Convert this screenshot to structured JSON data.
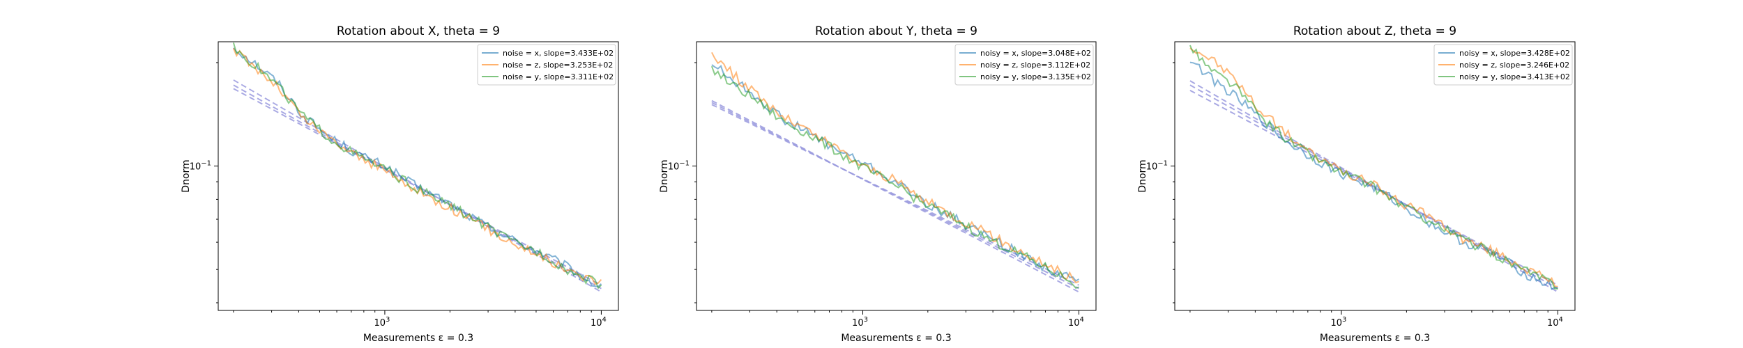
{
  "chart_data": [
    {
      "type": "line",
      "title": "Rotation about X, theta = 9",
      "xlabel": "Measurements ε = 0.3",
      "ylabel": "Dnorm",
      "xscale": "log",
      "yscale": "log",
      "xlim": [
        170,
        12000
      ],
      "ylim": [
        0.038,
        0.23
      ],
      "xticks": [
        {
          "value": 1000,
          "label": "10",
          "exp": "3"
        },
        {
          "value": 10000,
          "label": "10",
          "exp": "4"
        }
      ],
      "yticks": [
        {
          "value": 0.1,
          "label": "10",
          "exp": "−1"
        }
      ],
      "legend": "top-right",
      "grid": false,
      "series": [
        {
          "name": "noise = x, slope=3.433E+02",
          "color": "#1f77b4",
          "noise_y": [
            0.222,
            0.2,
            0.175,
            0.14,
            0.121,
            0.108,
            0.1,
            0.087,
            0.079,
            0.069,
            0.062,
            0.056,
            0.05,
            0.044
          ],
          "fit_start": 0.178,
          "fit_end": 0.043
        },
        {
          "name": "noise = z, slope=3.253E+02",
          "color": "#ff7f0e",
          "noise_y": [
            0.218,
            0.195,
            0.17,
            0.138,
            0.12,
            0.107,
            0.097,
            0.085,
            0.077,
            0.068,
            0.061,
            0.055,
            0.049,
            0.046
          ],
          "fit_start": 0.172,
          "fit_end": 0.044
        },
        {
          "name": "noise = y, slope=3.311E+02",
          "color": "#2ca02c",
          "noise_y": [
            0.223,
            0.197,
            0.172,
            0.14,
            0.12,
            0.107,
            0.098,
            0.086,
            0.078,
            0.069,
            0.061,
            0.056,
            0.049,
            0.045
          ],
          "fit_start": 0.168,
          "fit_end": 0.045
        }
      ],
      "x": [
        200,
        250,
        320,
        420,
        560,
        750,
        1000,
        1400,
        1900,
        2700,
        3700,
        5200,
        7300,
        10000
      ]
    },
    {
      "type": "line",
      "title": "Rotation about Y, theta = 9",
      "xlabel": "Measurements ε = 0.3",
      "ylabel": "Dnorm",
      "xscale": "log",
      "yscale": "log",
      "xlim": [
        170,
        12000
      ],
      "ylim": [
        0.038,
        0.23
      ],
      "xticks": [
        {
          "value": 1000,
          "label": "10",
          "exp": "3"
        },
        {
          "value": 10000,
          "label": "10",
          "exp": "4"
        }
      ],
      "yticks": [
        {
          "value": 0.1,
          "label": "10",
          "exp": "−1"
        }
      ],
      "legend": "top-right",
      "grid": false,
      "series": [
        {
          "name": "noisy = x, slope=3.048E+02",
          "color": "#1f77b4",
          "noise_y": [
            0.2,
            0.178,
            0.16,
            0.138,
            0.125,
            0.112,
            0.102,
            0.09,
            0.079,
            0.07,
            0.063,
            0.056,
            0.05,
            0.046
          ],
          "fit_start": 0.155,
          "fit_end": 0.043
        },
        {
          "name": "noisy = z, slope=3.112E+02",
          "color": "#ff7f0e",
          "noise_y": [
            0.214,
            0.185,
            0.162,
            0.14,
            0.126,
            0.113,
            0.1,
            0.091,
            0.08,
            0.071,
            0.064,
            0.057,
            0.051,
            0.046
          ],
          "fit_start": 0.153,
          "fit_end": 0.044
        },
        {
          "name": "noisy = y, slope=3.135E+02",
          "color": "#2ca02c",
          "noise_y": [
            0.192,
            0.172,
            0.156,
            0.136,
            0.124,
            0.111,
            0.099,
            0.088,
            0.078,
            0.07,
            0.062,
            0.056,
            0.05,
            0.045
          ],
          "fit_start": 0.151,
          "fit_end": 0.045
        }
      ],
      "x": [
        200,
        250,
        320,
        420,
        560,
        750,
        1000,
        1400,
        1900,
        2700,
        3700,
        5200,
        7300,
        10000
      ]
    },
    {
      "type": "line",
      "title": "Rotation about Z, theta = 9",
      "xlabel": "Measurements ε = 0.3",
      "ylabel": "Dnorm",
      "xscale": "log",
      "yscale": "log",
      "xlim": [
        170,
        12000
      ],
      "ylim": [
        0.038,
        0.23
      ],
      "xticks": [
        {
          "value": 1000,
          "label": "10",
          "exp": "3"
        },
        {
          "value": 10000,
          "label": "10",
          "exp": "4"
        }
      ],
      "yticks": [
        {
          "value": 0.1,
          "label": "10",
          "exp": "−1"
        }
      ],
      "legend": "top-right",
      "grid": false,
      "series": [
        {
          "name": "noisy = x, slope=3.428E+02",
          "color": "#1f77b4",
          "noise_y": [
            0.205,
            0.18,
            0.16,
            0.138,
            0.118,
            0.105,
            0.095,
            0.087,
            0.077,
            0.067,
            0.06,
            0.055,
            0.048,
            0.044
          ],
          "fit_start": 0.177,
          "fit_end": 0.043
        },
        {
          "name": "noisy = z, slope=3.246E+02",
          "color": "#ff7f0e",
          "noise_y": [
            0.222,
            0.205,
            0.18,
            0.145,
            0.124,
            0.107,
            0.097,
            0.088,
            0.078,
            0.07,
            0.061,
            0.056,
            0.05,
            0.045
          ],
          "fit_start": 0.172,
          "fit_end": 0.044
        },
        {
          "name": "noisy = y, slope=3.413E+02",
          "color": "#2ca02c",
          "noise_y": [
            0.223,
            0.19,
            0.172,
            0.14,
            0.12,
            0.106,
            0.096,
            0.087,
            0.077,
            0.068,
            0.061,
            0.055,
            0.049,
            0.045
          ],
          "fit_start": 0.166,
          "fit_end": 0.045
        }
      ],
      "x": [
        200,
        250,
        320,
        420,
        560,
        750,
        1000,
        1400,
        1900,
        2700,
        3700,
        5200,
        7300,
        10000
      ]
    }
  ],
  "colors": {
    "fit_line": "#9b9bdf",
    "axis": "#000000",
    "legend_border": "#cccccc"
  }
}
